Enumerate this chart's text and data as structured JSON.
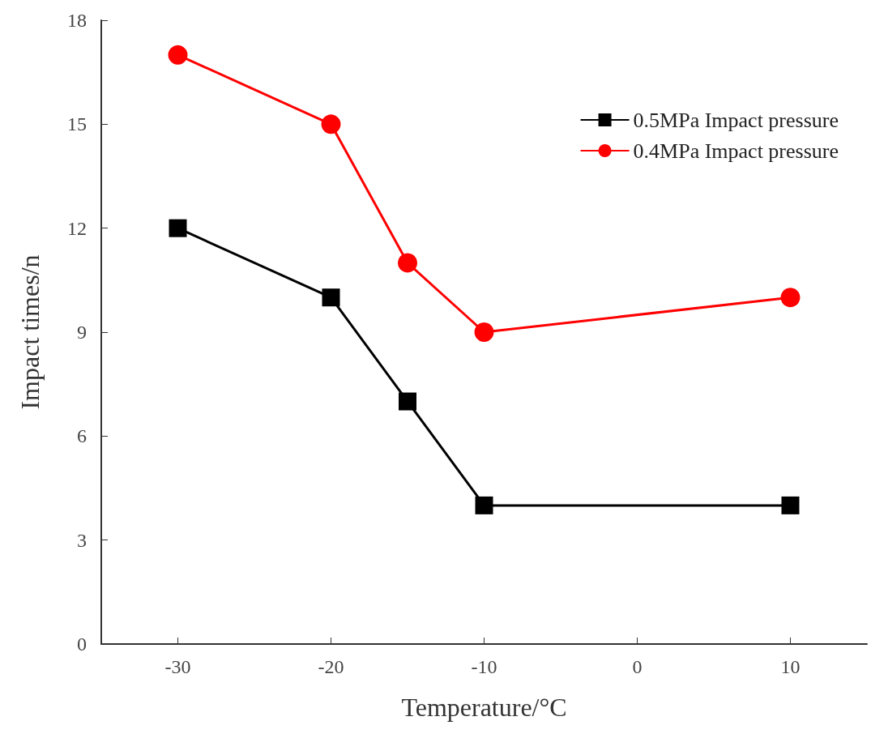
{
  "chart_data": {
    "type": "line",
    "xlabel": "Temperature/°C",
    "ylabel": "Impact times/n",
    "x": [
      -30,
      -20,
      -15,
      -10,
      10
    ],
    "series": [
      {
        "name": "0.5MPa Impact pressure",
        "color": "#000000",
        "marker": "square",
        "values": [
          12,
          10,
          7,
          4,
          4
        ]
      },
      {
        "name": "0.4MPa Impact pressure",
        "color": "#ff0000",
        "marker": "circle",
        "values": [
          17,
          15,
          11,
          9,
          10
        ]
      }
    ],
    "xlim": [
      -35,
      15
    ],
    "xticks": [
      -30,
      -20,
      -10,
      0,
      10
    ],
    "ylim": [
      0,
      18
    ],
    "yticks": [
      0,
      3,
      6,
      9,
      12,
      15,
      18
    ],
    "grid": false,
    "legend": "top right",
    "line_style": "solid"
  }
}
